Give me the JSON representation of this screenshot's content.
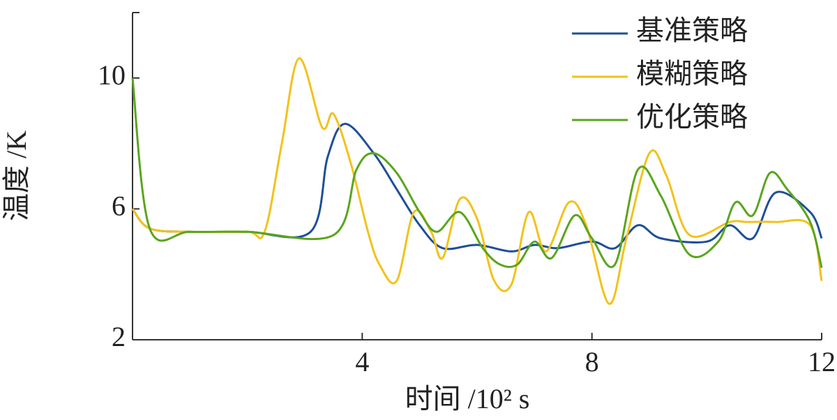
{
  "chart_data": {
    "type": "line",
    "xlabel": "时间 /10² s",
    "ylabel": "温度 /K",
    "xlim": [
      0,
      12
    ],
    "ylim": [
      2,
      12
    ],
    "xticks": [
      4,
      8,
      12
    ],
    "yticks": [
      2,
      6,
      10
    ],
    "legend": "upper right",
    "series": [
      {
        "name": "基准策略",
        "color": "#1f4f98",
        "x": [
          0,
          0.3,
          1,
          2,
          3.1,
          3.4,
          3.7,
          4.2,
          4.6,
          5.0,
          5.4,
          6.0,
          6.6,
          7.0,
          7.4,
          8.0,
          8.4,
          8.8,
          9.2,
          10.0,
          10.4,
          10.8,
          11.2,
          11.8,
          12
        ],
        "values": [
          6,
          5.4,
          5.3,
          5.3,
          5.3,
          7.6,
          8.6,
          7.7,
          6.6,
          5.5,
          4.8,
          4.9,
          4.7,
          4.9,
          4.8,
          5.0,
          4.8,
          5.5,
          5.1,
          5.0,
          5.5,
          5.1,
          6.5,
          5.9,
          5.1
        ]
      },
      {
        "name": "模糊策略",
        "color": "#f2c21a",
        "x": [
          0,
          0.3,
          1,
          2,
          2.3,
          2.6,
          2.9,
          3.3,
          3.5,
          3.8,
          4.1,
          4.3,
          4.6,
          4.9,
          5.2,
          5.4,
          5.7,
          6.0,
          6.3,
          6.6,
          6.9,
          7.2,
          7.6,
          7.9,
          8.3,
          8.6,
          9.0,
          9.3,
          9.7,
          10.4,
          10.7,
          11.2,
          11.8,
          12
        ],
        "values": [
          6,
          5.4,
          5.3,
          5.3,
          5.3,
          8.0,
          10.6,
          8.5,
          8.9,
          7.4,
          5.3,
          4.3,
          3.8,
          5.9,
          5.3,
          4.5,
          6.3,
          5.7,
          3.8,
          3.7,
          5.9,
          4.7,
          6.2,
          5.5,
          3.1,
          5.1,
          7.7,
          7.0,
          5.2,
          5.6,
          5.6,
          5.6,
          5.5,
          3.8
        ]
      },
      {
        "name": "优化策略",
        "color": "#5aa51e",
        "x": [
          0,
          0.3,
          1,
          2,
          3.5,
          3.9,
          4.2,
          4.6,
          5.0,
          5.3,
          5.7,
          6.1,
          6.4,
          6.7,
          7.0,
          7.3,
          7.7,
          8.0,
          8.4,
          8.8,
          9.2,
          9.7,
          10.2,
          10.5,
          10.8,
          11.1,
          11.4,
          11.8,
          12
        ],
        "values": [
          10,
          5.4,
          5.3,
          5.3,
          5.2,
          7.2,
          7.7,
          7.1,
          5.9,
          5.3,
          5.9,
          4.8,
          4.3,
          4.3,
          5.0,
          4.5,
          5.8,
          5.1,
          4.3,
          7.2,
          6.4,
          4.6,
          5.0,
          6.2,
          5.8,
          7.1,
          6.6,
          5.6,
          4.2
        ]
      }
    ]
  }
}
